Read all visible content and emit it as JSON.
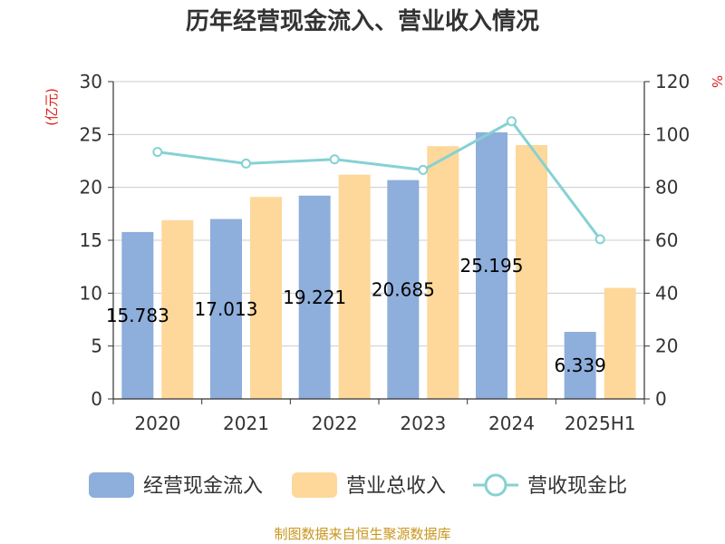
{
  "chart_data": {
    "type": "bar",
    "title": "历年经营现金流入、营业收入情况",
    "categories": [
      "2020",
      "2021",
      "2022",
      "2023",
      "2024",
      "2025H1"
    ],
    "y_left": {
      "unit": "(亿元)",
      "range": [
        0,
        30
      ],
      "ticks": [
        "0",
        "5",
        "10",
        "15",
        "20",
        "25",
        "30"
      ]
    },
    "y_right": {
      "unit": "%",
      "range": [
        0,
        120
      ],
      "ticks": [
        "0",
        "20",
        "40",
        "60",
        "80",
        "100",
        "120"
      ]
    },
    "series": [
      {
        "name": "经营现金流入",
        "type": "bar",
        "axis": "left",
        "color": "#8eaedc",
        "values": [
          15.78,
          17.01,
          19.22,
          20.69,
          25.2,
          6.34
        ],
        "labels": [
          "15.783",
          "17.013",
          "19.221",
          "20.685",
          "25.195",
          "6.339"
        ]
      },
      {
        "name": "营业总收入",
        "type": "bar",
        "axis": "left",
        "color": "#fdd89a",
        "values": [
          16.9,
          19.1,
          21.2,
          23.9,
          24.0,
          10.5
        ]
      },
      {
        "name": "营收现金比",
        "type": "line",
        "axis": "right",
        "color": "#86d1d4",
        "values": [
          93.4,
          89.0,
          90.6,
          86.6,
          105.0,
          60.4
        ]
      }
    ],
    "grid": true,
    "legend": "bottom"
  },
  "source": "制图数据来自恒生聚源数据库"
}
